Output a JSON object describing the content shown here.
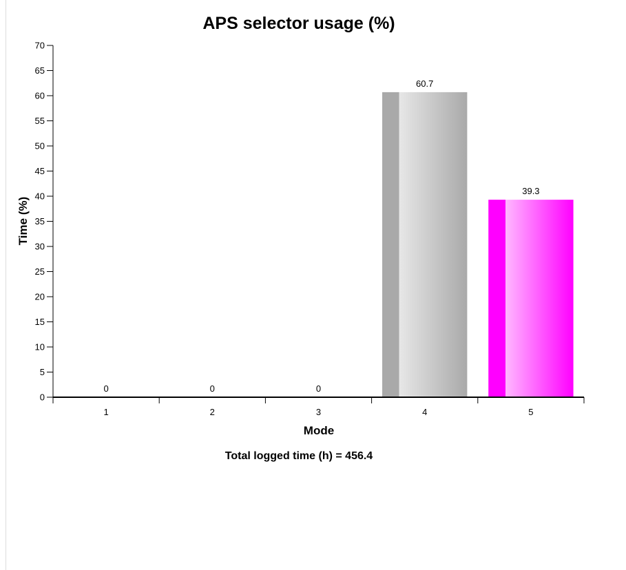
{
  "chart_data": {
    "type": "bar",
    "title": "APS selector usage (%)",
    "xlabel": "Mode",
    "ylabel": "Time (%)",
    "categories": [
      "1",
      "2",
      "3",
      "4",
      "5"
    ],
    "values": [
      0,
      0,
      0,
      60.7,
      39.3
    ],
    "data_labels": [
      "0",
      "0",
      "0",
      "60.7",
      "39.3"
    ],
    "ylim": [
      0,
      70
    ],
    "yticks": [
      0,
      5,
      10,
      15,
      20,
      25,
      30,
      35,
      40,
      45,
      50,
      55,
      60,
      65,
      70
    ],
    "bar_colors": [
      "#a9a9a9",
      "#a9a9a9",
      "#a9a9a9",
      "#a9a9a9",
      "#ff00ff"
    ],
    "grid": false,
    "legend": "none",
    "footnote": "Total logged time (h) = 456.4"
  }
}
